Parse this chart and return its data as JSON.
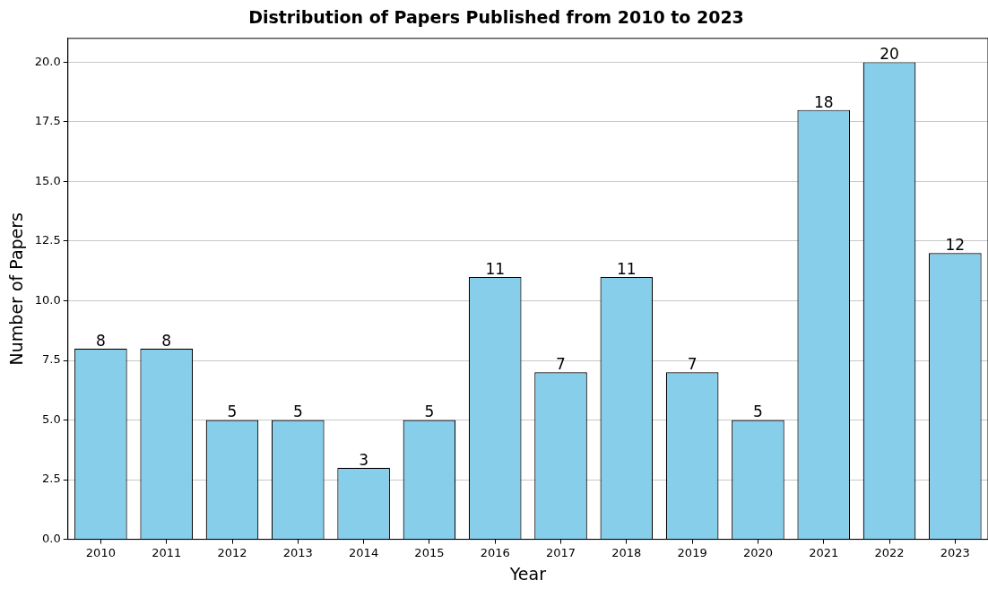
{
  "chart_data": {
    "type": "bar",
    "title": "Distribution of Papers Published from 2010 to 2023",
    "xlabel": "Year",
    "ylabel": "Number of Papers",
    "categories": [
      "2010",
      "2011",
      "2012",
      "2013",
      "2014",
      "2015",
      "2016",
      "2017",
      "2018",
      "2019",
      "2020",
      "2021",
      "2022",
      "2023"
    ],
    "values": [
      8,
      8,
      5,
      5,
      3,
      5,
      11,
      7,
      11,
      7,
      5,
      18,
      20,
      12
    ],
    "color": "#87ceeb",
    "ylim": [
      0,
      21
    ],
    "yticks": [
      {
        "value": 0,
        "label": "0.0"
      },
      {
        "value": 2.5,
        "label": "2.5"
      },
      {
        "value": 5,
        "label": "5.0"
      },
      {
        "value": 7.5,
        "label": "7.5"
      },
      {
        "value": 10,
        "label": "10.0"
      },
      {
        "value": 12.5,
        "label": "12.5"
      },
      {
        "value": 15,
        "label": "15.0"
      },
      {
        "value": 17.5,
        "label": "17.5"
      },
      {
        "value": 20,
        "label": "20.0"
      }
    ],
    "grid": "y",
    "data_labels": true,
    "legend": false
  }
}
